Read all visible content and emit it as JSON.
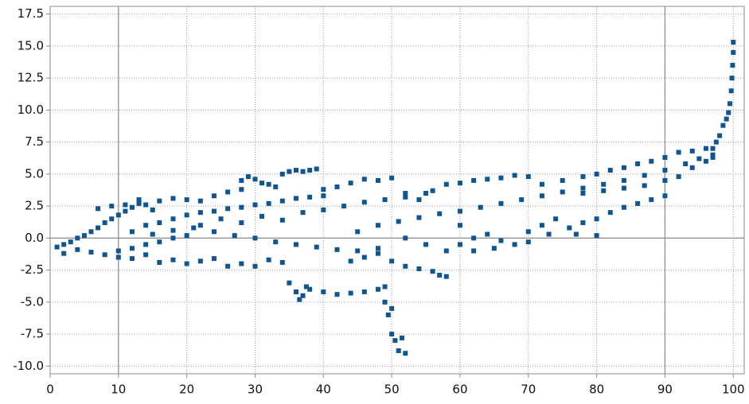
{
  "chart_data": {
    "type": "scatter",
    "color": "#0e5592",
    "grid": true,
    "reference_x": [
      10,
      90
    ],
    "reference_y": [
      0
    ],
    "xlim": [
      0,
      101.6
    ],
    "ylim": [
      -10.6,
      18.1
    ],
    "xticks": [
      0,
      10,
      20,
      30,
      40,
      50,
      60,
      70,
      80,
      90,
      100
    ],
    "yticks": [
      {
        "value": -10,
        "label": "-10.0"
      },
      -7.5,
      {
        "value": -5,
        "label": "-5.0"
      },
      -2.5,
      {
        "value": 0,
        "label": "0.0"
      },
      2.5,
      {
        "value": 5,
        "label": "5.0"
      },
      7.5,
      {
        "value": 10,
        "label": "10.0"
      },
      12.5,
      {
        "value": 15,
        "label": "15.0"
      },
      17.5
    ],
    "x": [
      1,
      2,
      3,
      4,
      5,
      6,
      7,
      8,
      9,
      10,
      11,
      12,
      13,
      14,
      15,
      2,
      4,
      6,
      8,
      10,
      12,
      14,
      16,
      18,
      20,
      7,
      9,
      11,
      13,
      16,
      18,
      20,
      22,
      24,
      26,
      28,
      10,
      12,
      14,
      16,
      18,
      20,
      22,
      24,
      26,
      28,
      30,
      32,
      34,
      12,
      14,
      16,
      18,
      20,
      22,
      24,
      26,
      28,
      30,
      32,
      34,
      36,
      38,
      40,
      15,
      18,
      21,
      24,
      27,
      30,
      33,
      36,
      39,
      42,
      45,
      48,
      28,
      29,
      30,
      31,
      32,
      33,
      34,
      35,
      36,
      37,
      38,
      39,
      22,
      25,
      28,
      31,
      34,
      37,
      40,
      43,
      46,
      49,
      52,
      55,
      35,
      36,
      36.5,
      37,
      37.5,
      38,
      40,
      42,
      44,
      46,
      48,
      49,
      49,
      49.5,
      50,
      50.5,
      51,
      52,
      51.5,
      50,
      40,
      42,
      44,
      46,
      48,
      50,
      52,
      54,
      56,
      58,
      60,
      62,
      64,
      66,
      68,
      70,
      44,
      46,
      48,
      50,
      52,
      54,
      56,
      58,
      57,
      45,
      48,
      51,
      54,
      57,
      60,
      63,
      66,
      69,
      72,
      75,
      78,
      81,
      84,
      87,
      90,
      93,
      95,
      97,
      52,
      55,
      58,
      60,
      62,
      64,
      66,
      68,
      70,
      72,
      74,
      76,
      78,
      80,
      82,
      84,
      86,
      88,
      90,
      60,
      62,
      65,
      70,
      73,
      77,
      80,
      72,
      75,
      78,
      80,
      82,
      84,
      86,
      88,
      90,
      92,
      94,
      96,
      78,
      81,
      84,
      87,
      90,
      92,
      94,
      96,
      97,
      97,
      97.5,
      98,
      98.5,
      99,
      99.3,
      99.5,
      99.7,
      99.8,
      99.9,
      100,
      100
    ],
    "y": [
      -0.7,
      -0.5,
      -0.3,
      0,
      0.2,
      0.5,
      0.8,
      1.2,
      1.5,
      1.8,
      2.1,
      2.4,
      2.7,
      2.6,
      2.2,
      -1.2,
      -0.9,
      -1.1,
      -1.3,
      -1.0,
      -0.8,
      -0.5,
      -0.3,
      0,
      0.2,
      2.3,
      2.5,
      2.6,
      3.0,
      2.9,
      3.1,
      3.0,
      2.9,
      3.3,
      3.6,
      3.8,
      -1.5,
      -1.6,
      -1.3,
      -1.9,
      -1.7,
      -2.0,
      -1.8,
      -1.6,
      -2.2,
      -2.0,
      -2.2,
      -1.7,
      -1.9,
      0.5,
      1.0,
      1.2,
      1.5,
      1.8,
      2.0,
      2.1,
      2.3,
      2.4,
      2.6,
      2.7,
      2.9,
      3.1,
      3.2,
      3.3,
      0.3,
      0.6,
      0.8,
      0.5,
      0.2,
      0,
      -0.3,
      -0.5,
      -0.7,
      -0.9,
      -1.0,
      -0.8,
      4.5,
      4.8,
      4.6,
      4.3,
      4.2,
      4.0,
      5.0,
      5.2,
      5.3,
      5.2,
      5.3,
      5.4,
      1.0,
      1.5,
      1.2,
      1.7,
      1.4,
      2.0,
      2.2,
      2.5,
      2.8,
      3.0,
      3.2,
      3.5,
      -3.5,
      -4.2,
      -4.8,
      -4.5,
      -3.8,
      -4.0,
      -4.2,
      -4.4,
      -4.3,
      -4.2,
      -4.0,
      -3.8,
      -5.0,
      -6.0,
      -7.5,
      -8.0,
      -8.8,
      -9.0,
      -7.8,
      -5.5,
      3.8,
      4.0,
      4.3,
      4.6,
      4.5,
      4.7,
      3.5,
      3.0,
      3.7,
      4.2,
      4.3,
      4.5,
      4.6,
      4.7,
      4.9,
      4.8,
      -1.8,
      -1.5,
      -1.2,
      -1.8,
      -2.2,
      -2.4,
      -2.6,
      -3.0,
      -2.9,
      0.5,
      1.0,
      1.3,
      1.6,
      1.9,
      2.1,
      2.4,
      2.7,
      3.0,
      3.3,
      3.6,
      3.9,
      4.2,
      4.5,
      4.9,
      5.3,
      5.8,
      6.2,
      6.5,
      0,
      -0.5,
      -1.0,
      -0.5,
      0,
      0.3,
      -0.2,
      -0.5,
      0.5,
      1.0,
      1.5,
      0.8,
      1.2,
      1.5,
      2.0,
      2.4,
      2.7,
      3.0,
      3.3,
      1.0,
      -1.0,
      -0.8,
      -0.3,
      0.3,
      0.3,
      0.2,
      4.2,
      4.5,
      4.8,
      5.0,
      5.3,
      5.5,
      5.8,
      6.0,
      6.3,
      6.7,
      6.8,
      7.0,
      3.5,
      3.7,
      3.9,
      4.1,
      4.5,
      4.8,
      5.5,
      6.0,
      6.3,
      7.0,
      7.5,
      8.0,
      8.8,
      9.3,
      9.8,
      10.5,
      11.5,
      12.5,
      13.5,
      14.5,
      15.3
    ]
  }
}
